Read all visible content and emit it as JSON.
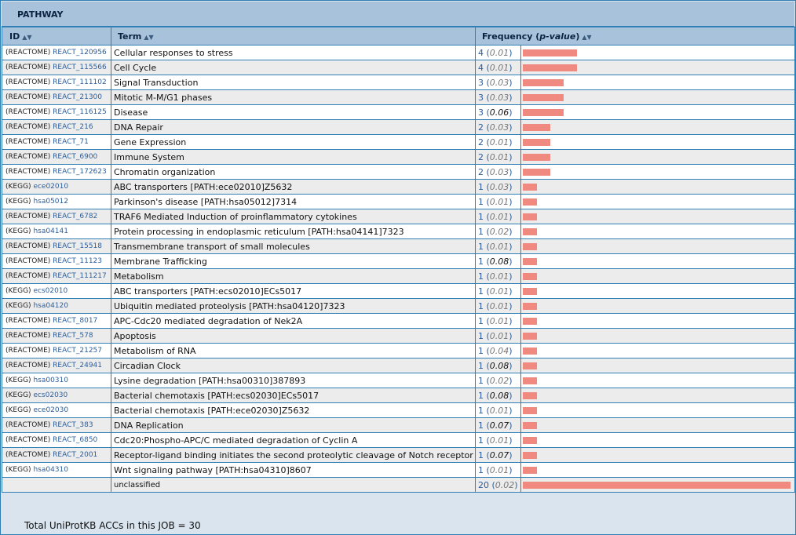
{
  "title": "PATHWAY",
  "headers": {
    "id": "ID",
    "term": "Term",
    "freq_prefix": "Frequency (",
    "freq_p": "p-value",
    "freq_suffix": ")",
    "sort_icon": "sort-arrows-icon"
  },
  "bar_color": "#f08a80",
  "rows": [
    {
      "db": "(REACTOME)",
      "acc": "REACT_120956",
      "term": "Cellular responses to stress",
      "count": "4",
      "pvalue": "0.01",
      "n": 4
    },
    {
      "db": "(REACTOME)",
      "acc": "REACT_115566",
      "term": "Cell Cycle",
      "count": "4",
      "pvalue": "0.01",
      "n": 4
    },
    {
      "db": "(REACTOME)",
      "acc": "REACT_111102",
      "term": "Signal Transduction",
      "count": "3",
      "pvalue": "0.03",
      "n": 3
    },
    {
      "db": "(REACTOME)",
      "acc": "REACT_21300",
      "term": "Mitotic M-M/G1 phases",
      "count": "3",
      "pvalue": "0.03",
      "n": 3
    },
    {
      "db": "(REACTOME)",
      "acc": "REACT_116125",
      "term": "Disease",
      "count": "3",
      "pvalue": "0.06",
      "n": 3
    },
    {
      "db": "(REACTOME)",
      "acc": "REACT_216",
      "term": "DNA Repair",
      "count": "2",
      "pvalue": "0.03",
      "n": 2
    },
    {
      "db": "(REACTOME)",
      "acc": "REACT_71",
      "term": "Gene Expression",
      "count": "2",
      "pvalue": "0.01",
      "n": 2
    },
    {
      "db": "(REACTOME)",
      "acc": "REACT_6900",
      "term": "Immune System",
      "count": "2",
      "pvalue": "0.01",
      "n": 2
    },
    {
      "db": "(REACTOME)",
      "acc": "REACT_172623",
      "term": "Chromatin organization",
      "count": "2",
      "pvalue": "0.03",
      "n": 2
    },
    {
      "db": "(KEGG)",
      "acc": "ece02010",
      "term": "ABC transporters [PATH:ece02010]Z5632",
      "count": "1",
      "pvalue": "0.03",
      "n": 1
    },
    {
      "db": "(KEGG)",
      "acc": "hsa05012",
      "term": "Parkinson's disease [PATH:hsa05012]7314",
      "count": "1",
      "pvalue": "0.01",
      "n": 1
    },
    {
      "db": "(REACTOME)",
      "acc": "REACT_6782",
      "term": "TRAF6 Mediated Induction of proinflammatory cytokines",
      "count": "1",
      "pvalue": "0.01",
      "n": 1
    },
    {
      "db": "(KEGG)",
      "acc": "hsa04141",
      "term": "Protein processing in endoplasmic reticulum [PATH:hsa04141]7323",
      "count": "1",
      "pvalue": "0.02",
      "n": 1
    },
    {
      "db": "(REACTOME)",
      "acc": "REACT_15518",
      "term": "Transmembrane transport of small molecules",
      "count": "1",
      "pvalue": "0.01",
      "n": 1
    },
    {
      "db": "(REACTOME)",
      "acc": "REACT_11123",
      "term": "Membrane Trafficking",
      "count": "1",
      "pvalue": "0.08",
      "n": 1
    },
    {
      "db": "(REACTOME)",
      "acc": "REACT_111217",
      "term": "Metabolism",
      "count": "1",
      "pvalue": "0.01",
      "n": 1
    },
    {
      "db": "(KEGG)",
      "acc": "ecs02010",
      "term": "ABC transporters [PATH:ecs02010]ECs5017",
      "count": "1",
      "pvalue": "0.01",
      "n": 1
    },
    {
      "db": "(KEGG)",
      "acc": "hsa04120",
      "term": "Ubiquitin mediated proteolysis [PATH:hsa04120]7323",
      "count": "1",
      "pvalue": "0.01",
      "n": 1
    },
    {
      "db": "(REACTOME)",
      "acc": "REACT_8017",
      "term": "APC-Cdc20 mediated degradation of Nek2A",
      "count": "1",
      "pvalue": "0.01",
      "n": 1
    },
    {
      "db": "(REACTOME)",
      "acc": "REACT_578",
      "term": "Apoptosis",
      "count": "1",
      "pvalue": "0.01",
      "n": 1
    },
    {
      "db": "(REACTOME)",
      "acc": "REACT_21257",
      "term": "Metabolism of RNA",
      "count": "1",
      "pvalue": "0.04",
      "n": 1
    },
    {
      "db": "(REACTOME)",
      "acc": "REACT_24941",
      "term": "Circadian Clock",
      "count": "1",
      "pvalue": "0.08",
      "n": 1
    },
    {
      "db": "(KEGG)",
      "acc": "hsa00310",
      "term": "Lysine degradation [PATH:hsa00310]387893",
      "count": "1",
      "pvalue": "0.02",
      "n": 1
    },
    {
      "db": "(KEGG)",
      "acc": "ecs02030",
      "term": "Bacterial chemotaxis [PATH:ecs02030]ECs5017",
      "count": "1",
      "pvalue": "0.08",
      "n": 1
    },
    {
      "db": "(KEGG)",
      "acc": "ece02030",
      "term": "Bacterial chemotaxis [PATH:ece02030]Z5632",
      "count": "1",
      "pvalue": "0.01",
      "n": 1
    },
    {
      "db": "(REACTOME)",
      "acc": "REACT_383",
      "term": "DNA Replication",
      "count": "1",
      "pvalue": "0.07",
      "n": 1
    },
    {
      "db": "(REACTOME)",
      "acc": "REACT_6850",
      "term": "Cdc20:Phospho-APC/C mediated degradation of Cyclin A",
      "count": "1",
      "pvalue": "0.01",
      "n": 1
    },
    {
      "db": "(REACTOME)",
      "acc": "REACT_2001",
      "term": "Receptor-ligand binding initiates the second proteolytic cleavage of Notch receptor",
      "count": "1",
      "pvalue": "0.07",
      "n": 1
    },
    {
      "db": "(KEGG)",
      "acc": "hsa04310",
      "term": "Wnt signaling pathway [PATH:hsa04310]8607",
      "count": "1",
      "pvalue": "0.01",
      "n": 1
    }
  ],
  "unclassified": {
    "term": "unclassified",
    "count": "20",
    "pvalue": "0.02",
    "n": 20
  },
  "total_text": "Total UniProtKB ACCs in this JOB = 30"
}
